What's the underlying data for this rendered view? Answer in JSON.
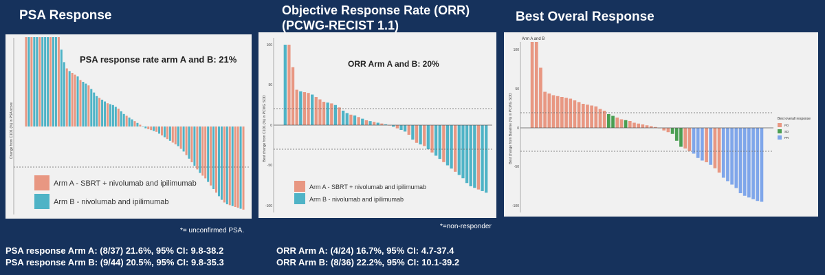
{
  "colors": {
    "background": "#16325c",
    "arm_a": "#e89782",
    "arm_b": "#4fb3c6",
    "pd": "#e89782",
    "sd": "#4a9e52",
    "pr": "#7fa6ea"
  },
  "psa": {
    "heading": "PSA Response",
    "annotation": "PSA response rate arm A and B: 21%",
    "legend_a": "Arm A - SBRT + nivolumab and ipilimumab",
    "legend_b": "Arm B - nivolumab and ipilimumab",
    "ylabel": "Change from C1D1 (%) in PSA score",
    "footnote": "*= unconfirmed PSA.",
    "stat_a": "PSA response Arm A: (8/37) 21.6%, 95% CI: 9.8-38.2",
    "stat_b": "PSA response Arm B: (9/44) 20.5%, 95% CI: 9.8-35.3"
  },
  "orr": {
    "heading_line1": "Objective Response Rate (ORR)",
    "heading_line2": "(PCWG-RECIST 1.1)",
    "annotation": "ORR Arm A and B: 20%",
    "legend_a": "Arm A - SBRT + nivolumab and ipilimumab",
    "legend_b": "Arm B - nivolumab and ipilimumab",
    "ylabel": "Best change from C1D1 (%) in PCWG SOD",
    "footnote": "*=non-responder",
    "stat_a": "ORR Arm A: (4/24) 16.7%, 95% CI: 4.7-37.4",
    "stat_b": "ORR Arm B: (8/36) 22.2%, 95% CI: 10.1-39.2"
  },
  "bor": {
    "heading": "Best Overal Response",
    "corner_label": "Arm A and B",
    "ylabel": "Best change from Baseline (%) in PCWG SOD",
    "legend_title": "Best overall response",
    "legend_pd": "PD",
    "legend_sd": "SD",
    "legend_pr": "PR"
  },
  "chart_data": [
    {
      "type": "bar",
      "subtype": "waterfall",
      "title": "PSA Response",
      "ylabel": "Change from C1D1 (%) in PSA score",
      "ylim": [
        -100,
        100
      ],
      "reference_lines": [
        -50
      ],
      "series_keys": [
        "A",
        "B"
      ],
      "values": [
        100,
        100,
        100,
        100,
        100,
        100,
        100,
        100,
        100,
        100,
        100,
        100,
        100,
        86,
        72,
        65,
        62,
        60,
        58,
        56,
        52,
        50,
        48,
        46,
        42,
        38,
        34,
        32,
        30,
        28,
        26,
        25,
        24,
        22,
        20,
        17,
        14,
        12,
        10,
        8,
        6,
        4,
        2,
        0,
        -2,
        -3,
        -4,
        -5,
        -6,
        -8,
        -10,
        -12,
        -14,
        -16,
        -18,
        -20,
        -22,
        -25,
        -28,
        -32,
        -36,
        -40,
        -44,
        -48,
        -52,
        -55,
        -58,
        -62,
        -66,
        -70,
        -74,
        -78,
        -82,
        -85,
        -87,
        -88,
        -89,
        -90,
        -91,
        -92,
        -93
      ],
      "arms": [
        "A",
        "B",
        "A",
        "B",
        "B",
        "A",
        "B",
        "B",
        "B",
        "A",
        "B",
        "B",
        "A",
        "B",
        "B",
        "A",
        "B",
        "A",
        "A",
        "B",
        "A",
        "B",
        "B",
        "A",
        "B",
        "B",
        "B",
        "A",
        "B",
        "B",
        "A",
        "B",
        "B",
        "B",
        "A",
        "B",
        "B",
        "A",
        "B",
        "B",
        "A",
        "B",
        "A",
        "B",
        "B",
        "A",
        "A",
        "B",
        "A",
        "B",
        "A",
        "B",
        "A",
        "B",
        "A",
        "A",
        "B",
        "A",
        "B",
        "A",
        "B",
        "A",
        "B",
        "A",
        "B",
        "A",
        "A",
        "B",
        "A",
        "B",
        "A",
        "B",
        "B",
        "A",
        "B",
        "A",
        "B",
        "A",
        "A",
        "B",
        "A"
      ]
    },
    {
      "type": "bar",
      "subtype": "waterfall",
      "title": "Objective Response Rate (ORR) (PCWG-RECIST 1.1)",
      "ylabel": "Best change from C1D1 (%) in PCWG SOD",
      "ylim": [
        -100,
        100
      ],
      "yticks": [
        -100,
        -50,
        0,
        50,
        100
      ],
      "reference_lines": [
        20,
        -30
      ],
      "series_keys": [
        "A",
        "B"
      ],
      "values": [
        100,
        100,
        72,
        44,
        42,
        41,
        40,
        38,
        35,
        32,
        29,
        28,
        27,
        25,
        22,
        18,
        15,
        13,
        12,
        10,
        8,
        6,
        5,
        4,
        3,
        2,
        1,
        0,
        -2,
        -4,
        -6,
        -8,
        -12,
        -18,
        -22,
        -24,
        -26,
        -30,
        -34,
        -38,
        -42,
        -46,
        -50,
        -54,
        -58,
        -62,
        -66,
        -72,
        -76,
        -78,
        -80,
        -82,
        -84
      ],
      "arms": [
        "B",
        "A",
        "A",
        "A",
        "B",
        "A",
        "A",
        "B",
        "A",
        "A",
        "A",
        "B",
        "A",
        "B",
        "A",
        "B",
        "B",
        "A",
        "B",
        "A",
        "B",
        "A",
        "B",
        "A",
        "B",
        "A",
        "B",
        "A",
        "B",
        "A",
        "B",
        "B",
        "A",
        "B",
        "A",
        "B",
        "A",
        "B",
        "A",
        "B",
        "B",
        "A",
        "B",
        "B",
        "A",
        "B",
        "B",
        "B",
        "B",
        "B",
        "A",
        "B",
        "B"
      ]
    },
    {
      "type": "bar",
      "subtype": "waterfall",
      "title": "Best Overal Response",
      "ylabel": "Best change from Baseline (%) in PCWG SOD",
      "ylim": [
        -100,
        100
      ],
      "yticks": [
        -100,
        -50,
        0,
        50,
        100
      ],
      "reference_lines": [
        20,
        -30
      ],
      "legend": {
        "title": "Best overall response",
        "entries": [
          "PD",
          "SD",
          "PR"
        ],
        "position": "right"
      },
      "values": [
        100,
        100,
        70,
        42,
        40,
        38,
        37,
        36,
        35,
        34,
        32,
        30,
        28,
        27,
        26,
        25,
        22,
        20,
        16,
        14,
        12,
        10,
        9,
        8,
        6,
        5,
        4,
        3,
        2,
        1,
        0,
        -3,
        -5,
        -7,
        -15,
        -22,
        -24,
        -27,
        -30,
        -35,
        -38,
        -40,
        -43,
        -47,
        -52,
        -58,
        -62,
        -66,
        -70,
        -76,
        -79,
        -81,
        -83,
        -85,
        -86
      ],
      "responses": [
        "PD",
        "PD",
        "PD",
        "PD",
        "PD",
        "PD",
        "PD",
        "PD",
        "PD",
        "PD",
        "PD",
        "PD",
        "PD",
        "PD",
        "PD",
        "PD",
        "PD",
        "PD",
        "SD",
        "SD",
        "PD",
        "PD",
        "SD",
        "PD",
        "PD",
        "PD",
        "PD",
        "PD",
        "PD",
        "PD",
        "PD",
        "PD",
        "PD",
        "SD",
        "SD",
        "SD",
        "PD",
        "PD",
        "PR",
        "PR",
        "PR",
        "PD",
        "PR",
        "PD",
        "PD",
        "PR",
        "PR",
        "PR",
        "PR",
        "PR",
        "PR",
        "PR",
        "PR",
        "PR",
        "PR"
      ]
    }
  ]
}
